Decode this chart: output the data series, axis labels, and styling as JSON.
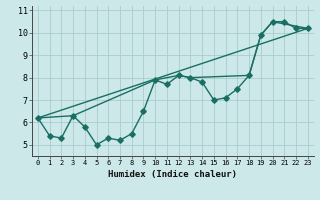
{
  "title": "",
  "xlabel": "Humidex (Indice chaleur)",
  "bg_color": "#cce8e8",
  "line_color": "#1a6e64",
  "grid_color": "#aacccc",
  "xlim": [
    -0.5,
    23.5
  ],
  "ylim": [
    4.5,
    11.2
  ],
  "xticks": [
    0,
    1,
    2,
    3,
    4,
    5,
    6,
    7,
    8,
    9,
    10,
    11,
    12,
    13,
    14,
    15,
    16,
    17,
    18,
    19,
    20,
    21,
    22,
    23
  ],
  "yticks": [
    5,
    6,
    7,
    8,
    9,
    10,
    11
  ],
  "series1_x": [
    0,
    1,
    2,
    3,
    4,
    5,
    6,
    7,
    8,
    9,
    10,
    11,
    12,
    13,
    14,
    15,
    16,
    17,
    18,
    19,
    20,
    21,
    22,
    23
  ],
  "series1_y": [
    6.2,
    5.4,
    5.3,
    6.3,
    5.8,
    5.0,
    5.3,
    5.2,
    5.5,
    6.5,
    7.9,
    7.7,
    8.1,
    8.0,
    7.8,
    7.0,
    7.1,
    7.5,
    8.1,
    9.9,
    10.5,
    10.5,
    10.2,
    10.2
  ],
  "series2_x": [
    0,
    3,
    10,
    12,
    13,
    18,
    19,
    20,
    23
  ],
  "series2_y": [
    6.2,
    6.3,
    7.9,
    8.1,
    8.0,
    8.1,
    9.9,
    10.5,
    10.2
  ],
  "series3_x": [
    0,
    23
  ],
  "series3_y": [
    6.2,
    10.2
  ],
  "marker_size": 2.8,
  "linewidth": 1.0
}
